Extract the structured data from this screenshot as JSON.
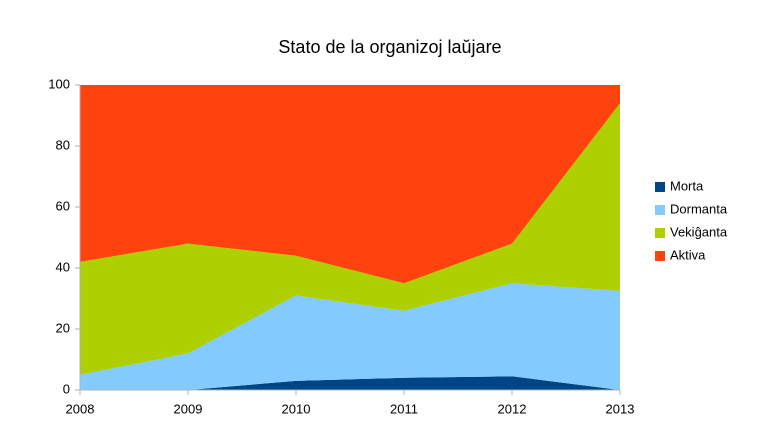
{
  "chart_data": {
    "type": "area",
    "stacked": true,
    "title": "Stato de la organizoj laŭjare",
    "x": [
      2008,
      2009,
      2010,
      2011,
      2012,
      2013
    ],
    "xlim": [
      2008,
      2013
    ],
    "xticks": [
      2008,
      2009,
      2010,
      2011,
      2012,
      2013
    ],
    "ylim": [
      0,
      100
    ],
    "yticks": [
      0,
      20,
      40,
      60,
      80,
      100
    ],
    "series": [
      {
        "name": "Morta",
        "color": "#004586",
        "values": [
          0,
          0,
          3,
          4,
          4.5,
          0
        ]
      },
      {
        "name": "Dormanta",
        "color": "#83caff",
        "values": [
          5,
          12,
          28,
          22,
          30.5,
          32.5
        ]
      },
      {
        "name": "Vekiĝanta",
        "color": "#aecf00",
        "values": [
          37,
          36,
          13,
          9,
          13,
          61.5
        ]
      },
      {
        "name": "Aktiva",
        "color": "#ff420e",
        "values": [
          58,
          52,
          56,
          65,
          52,
          6
        ]
      }
    ]
  }
}
